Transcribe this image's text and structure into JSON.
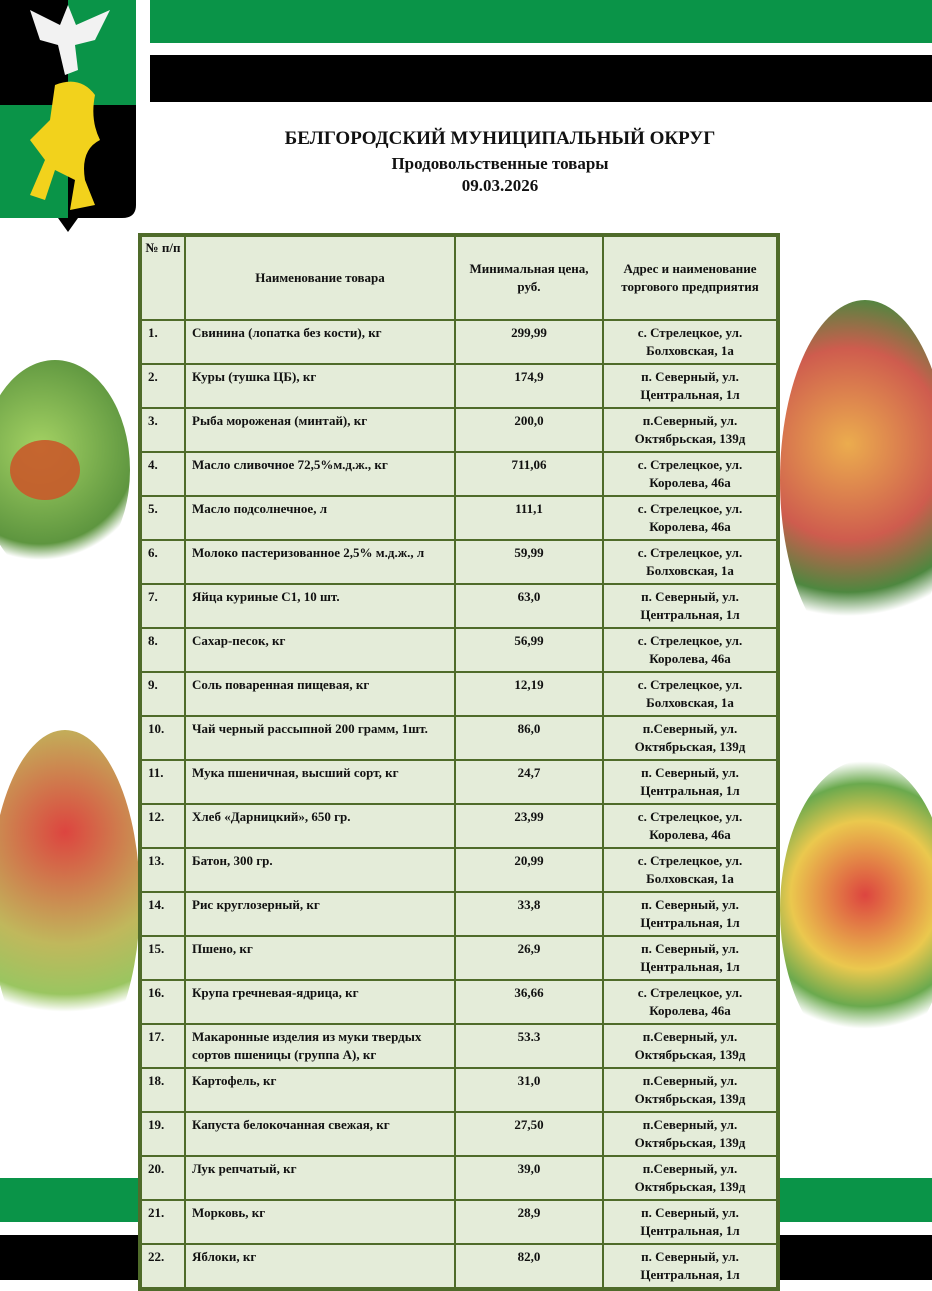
{
  "header": {
    "title": "БЕЛГОРОДСКИЙ МУНИЦИПАЛЬНЫЙ ОКРУГ",
    "subtitle": "Продовольственные товары",
    "date": "09.03.2026"
  },
  "colors": {
    "green": "#0a9448",
    "black": "#000000",
    "table_border": "#4f6b2a",
    "table_bg": "#e4ecd9",
    "lion": "#f2d21c"
  },
  "table": {
    "columns": [
      "№ п/п",
      "Наименование товара",
      "Минимальная цена, руб.",
      "Адрес и наименование торгового предприятия"
    ],
    "rows": [
      {
        "n": "1.",
        "name": "Свинина (лопатка без кости), кг",
        "price": "299,99",
        "addr1": "с. Стрелецкое, ул.",
        "addr2": "Болховская, 1а"
      },
      {
        "n": "2.",
        "name": "Куры (тушка ЦБ), кг",
        "price": "174,9",
        "addr1": "п. Северный, ул.",
        "addr2": "Центральная, 1л"
      },
      {
        "n": "3.",
        "name": "Рыба мороженая (минтай), кг",
        "price": "200,0",
        "addr1": "п.Северный, ул.",
        "addr2": "Октябрьская, 139д"
      },
      {
        "n": "4.",
        "name": "Масло сливочное 72,5%м.д.ж., кг",
        "price": "711,06",
        "addr1": "с. Стрелецкое, ул.",
        "addr2": "Королева, 46а"
      },
      {
        "n": "5.",
        "name": "Масло подсолнечное, л",
        "price": "111,1",
        "addr1": "с. Стрелецкое, ул.",
        "addr2": "Королева, 46а"
      },
      {
        "n": "6.",
        "name": "Молоко пастеризованное 2,5% м.д.ж., л",
        "price": "59,99",
        "addr1": "с. Стрелецкое, ул.",
        "addr2": "Болховская, 1а"
      },
      {
        "n": "7.",
        "name": "Яйца куриные С1, 10 шт.",
        "price": "63,0",
        "addr1": "п. Северный, ул.",
        "addr2": "Центральная, 1л"
      },
      {
        "n": "8.",
        "name": "Сахар-песок, кг",
        "price": "56,99",
        "addr1": "с. Стрелецкое, ул.",
        "addr2": "Королева, 46а"
      },
      {
        "n": "9.",
        "name": "Соль поваренная пищевая, кг",
        "price": "12,19",
        "addr1": "с. Стрелецкое, ул.",
        "addr2": "Болховская, 1а"
      },
      {
        "n": "10.",
        "name": "Чай черный рассыпной 200 грамм, 1шт.",
        "price": "86,0",
        "addr1": "п.Северный, ул.",
        "addr2": "Октябрьская, 139д"
      },
      {
        "n": "11.",
        "name": "Мука пшеничная, высший сорт, кг",
        "price": "24,7",
        "addr1": "п. Северный, ул.",
        "addr2": "Центральная, 1л"
      },
      {
        "n": "12.",
        "name": "Хлеб «Дарницкий», 650 гр.",
        "price": "23,99",
        "addr1": "с. Стрелецкое, ул.",
        "addr2": "Королева, 46а"
      },
      {
        "n": "13.",
        "name": "Батон, 300 гр.",
        "price": "20,99",
        "addr1": "с. Стрелецкое, ул.",
        "addr2": "Болховская, 1а"
      },
      {
        "n": "14.",
        "name": "Рис круглозерный, кг",
        "price": "33,8",
        "addr1": "п. Северный, ул.",
        "addr2": "Центральная, 1л"
      },
      {
        "n": "15.",
        "name": "Пшено, кг",
        "price": "26,9",
        "addr1": "п. Северный, ул.",
        "addr2": "Центральная, 1л"
      },
      {
        "n": "16.",
        "name": "Крупа гречневая-ядрица, кг",
        "price": "36,66",
        "addr1": "с. Стрелецкое, ул.",
        "addr2": "Королева, 46а"
      },
      {
        "n": "17.",
        "name": "Макаронные изделия из муки твердых сортов пшеницы (группа А), кг",
        "price": "53.3",
        "addr1": "п.Северный, ул.",
        "addr2": "Октябрьская, 139д"
      },
      {
        "n": "18.",
        "name": "Картофель, кг",
        "price": "31,0",
        "addr1": "п.Северный, ул.",
        "addr2": "Октябрьская, 139д"
      },
      {
        "n": "19.",
        "name": "Капуста белокочанная свежая, кг",
        "price": "27,50",
        "addr1": "п.Северный, ул.",
        "addr2": "Октябрьская, 139д"
      },
      {
        "n": "20.",
        "name": "Лук репчатый, кг",
        "price": "39,0",
        "addr1": "п.Северный, ул.",
        "addr2": "Октябрьская, 139д"
      },
      {
        "n": "21.",
        "name": "Морковь, кг",
        "price": "28,9",
        "addr1": "п. Северный, ул.",
        "addr2": "Центральная, 1л"
      },
      {
        "n": "22.",
        "name": "Яблоки, кг",
        "price": "82,0",
        "addr1": "п. Северный, ул.",
        "addr2": "Центральная, 1л"
      }
    ]
  }
}
